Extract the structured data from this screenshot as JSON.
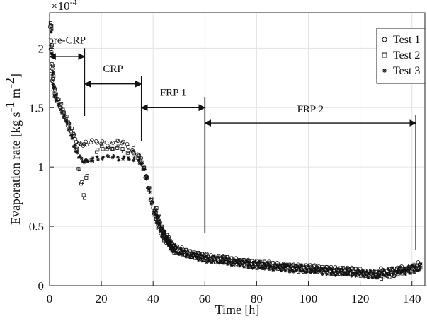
{
  "chart_data": {
    "type": "scatter",
    "title": "",
    "xlabel": "Time [h]",
    "ylabel": "Evaporation rate [kg s^-1 m^-2]",
    "y_multiplier": "×10^-4",
    "xlim": [
      0,
      145
    ],
    "ylim": [
      0,
      2.3
    ],
    "xticks": [
      0,
      20,
      40,
      60,
      80,
      100,
      120,
      140
    ],
    "yticks": [
      0,
      0.5,
      1,
      1.5,
      2
    ],
    "ytick_labels": [
      "0",
      "0.5",
      "1",
      "1.5",
      "2"
    ],
    "grid": true,
    "legend_position": "top-right",
    "legend": [
      {
        "name": "Test 1",
        "marker": "circle"
      },
      {
        "name": "Test 2",
        "marker": "square"
      },
      {
        "name": "Test 3",
        "marker": "star"
      }
    ],
    "periods": [
      {
        "label": "pre-CRP",
        "start": 0,
        "end": 13.5,
        "arrow_y": 1.93,
        "label_y": 2.04
      },
      {
        "label": "CRP",
        "start": 13.5,
        "end": 35.5,
        "arrow_y": 1.7,
        "label_y": 1.8
      },
      {
        "label": "FRP 1",
        "start": 35.5,
        "end": 60,
        "arrow_y": 1.5,
        "label_y": 1.6
      },
      {
        "label": "FRP 2",
        "start": 60,
        "end": 141.5,
        "arrow_y": 1.37,
        "label_y": 1.46
      }
    ],
    "boundary_lines": [
      {
        "x": 13.5,
        "y_bottom": 1.43,
        "y_top": 2.0
      },
      {
        "x": 35.5,
        "y_bottom": 1.22,
        "y_top": 1.77
      },
      {
        "x": 60,
        "y_bottom": 0.44,
        "y_top": 1.59
      },
      {
        "x": 141.5,
        "y_bottom": 0.3,
        "y_top": 1.44
      }
    ],
    "series": [
      {
        "name": "Test 1",
        "marker": "circle",
        "x": [
          0.2,
          0.4,
          0.7,
          1,
          1.5,
          2,
          3,
          4,
          5,
          6,
          7,
          8,
          9,
          10,
          11,
          12,
          13,
          14,
          16,
          18,
          20,
          22,
          24,
          26,
          28,
          30,
          32,
          34,
          35,
          36,
          37,
          38,
          39,
          40,
          41,
          42,
          43,
          44,
          45,
          46,
          47,
          48,
          50,
          52,
          54,
          56,
          58,
          60,
          62,
          64,
          66,
          68,
          70,
          72,
          74,
          76,
          78,
          80,
          82,
          84,
          86,
          88,
          90,
          92,
          94,
          96,
          98,
          100,
          102,
          104,
          106,
          108,
          110,
          112,
          114,
          116,
          118,
          120,
          122,
          124,
          126,
          128,
          130,
          132,
          134,
          136,
          138,
          140,
          142
        ],
        "y": [
          2.18,
          1.98,
          1.82,
          1.72,
          1.65,
          1.6,
          1.56,
          1.5,
          1.45,
          1.41,
          1.36,
          1.3,
          1.26,
          1.22,
          1.2,
          1.19,
          1.18,
          1.2,
          1.22,
          1.21,
          1.2,
          1.19,
          1.2,
          1.22,
          1.2,
          1.18,
          1.15,
          1.1,
          1.06,
          1.0,
          0.92,
          0.82,
          0.72,
          0.63,
          0.56,
          0.5,
          0.45,
          0.41,
          0.38,
          0.35,
          0.33,
          0.31,
          0.29,
          0.27,
          0.26,
          0.25,
          0.24,
          0.24,
          0.23,
          0.22,
          0.22,
          0.21,
          0.2,
          0.2,
          0.19,
          0.19,
          0.18,
          0.18,
          0.17,
          0.17,
          0.16,
          0.16,
          0.16,
          0.15,
          0.15,
          0.15,
          0.14,
          0.14,
          0.14,
          0.13,
          0.13,
          0.13,
          0.13,
          0.12,
          0.12,
          0.12,
          0.11,
          0.11,
          0.1,
          0.1,
          0.1,
          0.12,
          0.11,
          0.1,
          0.12,
          0.13,
          0.14,
          0.15,
          0.17
        ]
      },
      {
        "name": "Test 2",
        "marker": "square",
        "x": [
          0.2,
          0.4,
          0.7,
          1,
          1.5,
          2,
          3,
          4,
          5,
          6,
          7,
          8,
          9,
          10,
          11,
          12,
          13,
          14,
          16,
          18,
          20,
          22,
          24,
          26,
          28,
          30,
          32,
          34,
          35,
          36,
          37,
          38,
          39,
          40,
          41,
          42,
          43,
          44,
          45,
          46,
          47,
          48,
          50,
          52,
          54,
          56,
          58,
          60,
          62,
          64,
          66,
          68,
          70,
          72,
          74,
          76,
          78,
          80,
          82,
          84,
          86,
          88,
          90,
          92,
          94,
          96,
          98,
          100,
          102,
          104,
          106,
          108,
          110,
          112,
          114,
          116,
          118,
          120,
          122,
          124,
          126,
          128,
          130,
          132,
          134,
          136,
          138,
          140,
          142
        ],
        "y": [
          2.2,
          2.02,
          1.86,
          1.75,
          1.66,
          1.61,
          1.57,
          1.52,
          1.47,
          1.42,
          1.37,
          1.31,
          1.27,
          1.15,
          0.98,
          0.86,
          0.75,
          0.92,
          1.05,
          1.13,
          1.16,
          1.16,
          1.15,
          1.16,
          1.14,
          1.13,
          1.12,
          1.08,
          1.05,
          0.99,
          0.91,
          0.81,
          0.71,
          0.62,
          0.55,
          0.49,
          0.44,
          0.4,
          0.37,
          0.34,
          0.32,
          0.3,
          0.28,
          0.27,
          0.26,
          0.25,
          0.24,
          0.23,
          0.22,
          0.22,
          0.21,
          0.21,
          0.2,
          0.19,
          0.19,
          0.18,
          0.18,
          0.17,
          0.17,
          0.16,
          0.16,
          0.16,
          0.15,
          0.15,
          0.15,
          0.14,
          0.14,
          0.14,
          0.13,
          0.13,
          0.13,
          0.12,
          0.12,
          0.12,
          0.11,
          0.11,
          0.11,
          0.1,
          0.1,
          0.1,
          0.09,
          0.08,
          0.09,
          0.1,
          0.11,
          0.12,
          0.13,
          0.14,
          0.16
        ]
      },
      {
        "name": "Test 3",
        "marker": "star",
        "x": [
          0.2,
          0.4,
          0.7,
          1,
          1.5,
          2,
          3,
          4,
          5,
          6,
          7,
          8,
          9,
          10,
          11,
          12,
          13,
          14,
          16,
          18,
          20,
          22,
          24,
          26,
          28,
          30,
          32,
          34,
          35,
          36,
          37,
          38,
          39,
          40,
          41,
          42,
          43,
          44,
          45,
          46,
          47,
          48,
          50,
          52,
          54,
          56,
          58,
          60,
          62,
          64,
          66,
          68,
          70,
          72,
          74,
          76,
          78,
          80,
          82,
          84,
          86,
          88,
          90,
          92,
          94,
          96,
          98,
          100,
          102,
          104,
          106,
          108,
          110,
          112,
          114,
          116,
          118,
          120,
          122,
          124,
          126,
          128,
          130,
          132,
          134,
          136,
          138,
          140,
          142
        ],
        "y": [
          2.15,
          1.95,
          1.78,
          1.68,
          1.6,
          1.56,
          1.52,
          1.47,
          1.43,
          1.38,
          1.32,
          1.25,
          1.18,
          1.12,
          1.08,
          1.06,
          1.05,
          1.05,
          1.06,
          1.07,
          1.08,
          1.09,
          1.08,
          1.07,
          1.08,
          1.07,
          1.06,
          1.04,
          1.03,
          0.98,
          0.9,
          0.8,
          0.7,
          0.61,
          0.54,
          0.48,
          0.43,
          0.39,
          0.36,
          0.33,
          0.31,
          0.29,
          0.28,
          0.26,
          0.25,
          0.24,
          0.23,
          0.22,
          0.22,
          0.21,
          0.21,
          0.2,
          0.19,
          0.19,
          0.18,
          0.18,
          0.17,
          0.17,
          0.16,
          0.16,
          0.15,
          0.15,
          0.15,
          0.14,
          0.14,
          0.14,
          0.13,
          0.13,
          0.13,
          0.12,
          0.12,
          0.12,
          0.11,
          0.11,
          0.11,
          0.1,
          0.1,
          0.1,
          0.09,
          0.09,
          0.09,
          0.1,
          0.11,
          0.12,
          0.13,
          0.12,
          0.13,
          0.14,
          0.15
        ]
      }
    ]
  }
}
